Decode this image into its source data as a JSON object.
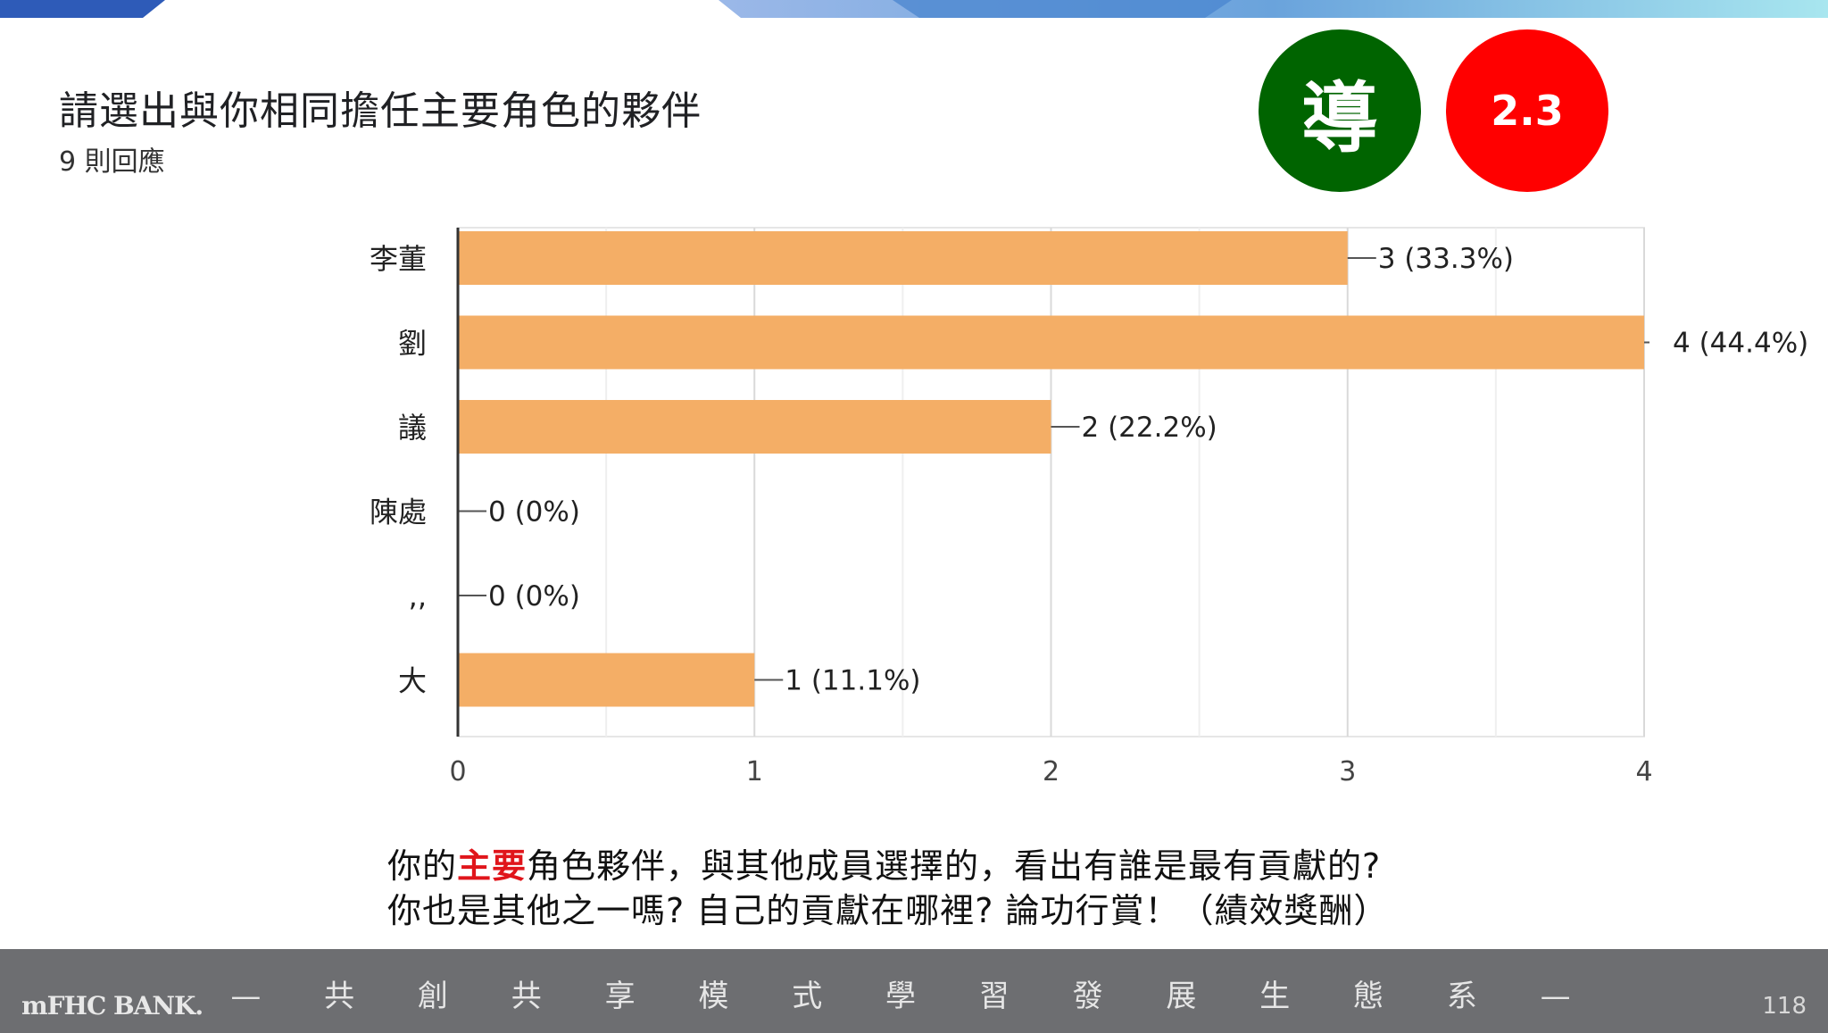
{
  "header": {
    "title": "請選出與你相同擔任主要角色的夥伴",
    "responses": "9 則回應"
  },
  "badges": {
    "guide": "導",
    "section": "2.3"
  },
  "colors": {
    "bar": "#f4ae66",
    "guide_badge": "#006400",
    "section_badge": "#ff0000",
    "highlight": "#e0151b",
    "footer": "#6d6e71"
  },
  "chart_data": {
    "type": "bar",
    "orientation": "horizontal",
    "categories": [
      "李董",
      "劉",
      "議",
      "陳處",
      ",,",
      "大"
    ],
    "values": [
      3,
      4,
      2,
      0,
      0,
      1
    ],
    "data_labels": [
      "3 (33.3%)",
      "4 (44.4%)",
      "2 (22.2%)",
      "0 (0%)",
      "0 (0%)",
      "1 (11.1%)"
    ],
    "xlim": [
      0,
      4
    ],
    "xticks": [
      0,
      1,
      2,
      3,
      4
    ],
    "grid": true
  },
  "question": {
    "line1_before": "你的",
    "line1_highlight": "主要",
    "line1_after": "角色夥伴，與其他成員選擇的，看出有誰是最有貢獻的?",
    "line2": "你也是其他之一嗎? 自己的貢獻在哪裡? 論功行賞！（績效獎酬）"
  },
  "footer": {
    "logo": "mFHC BANK.",
    "slogan": "— 共 創 共 享 模 式 學 習 發 展 生 態 系 —",
    "page": "118"
  }
}
